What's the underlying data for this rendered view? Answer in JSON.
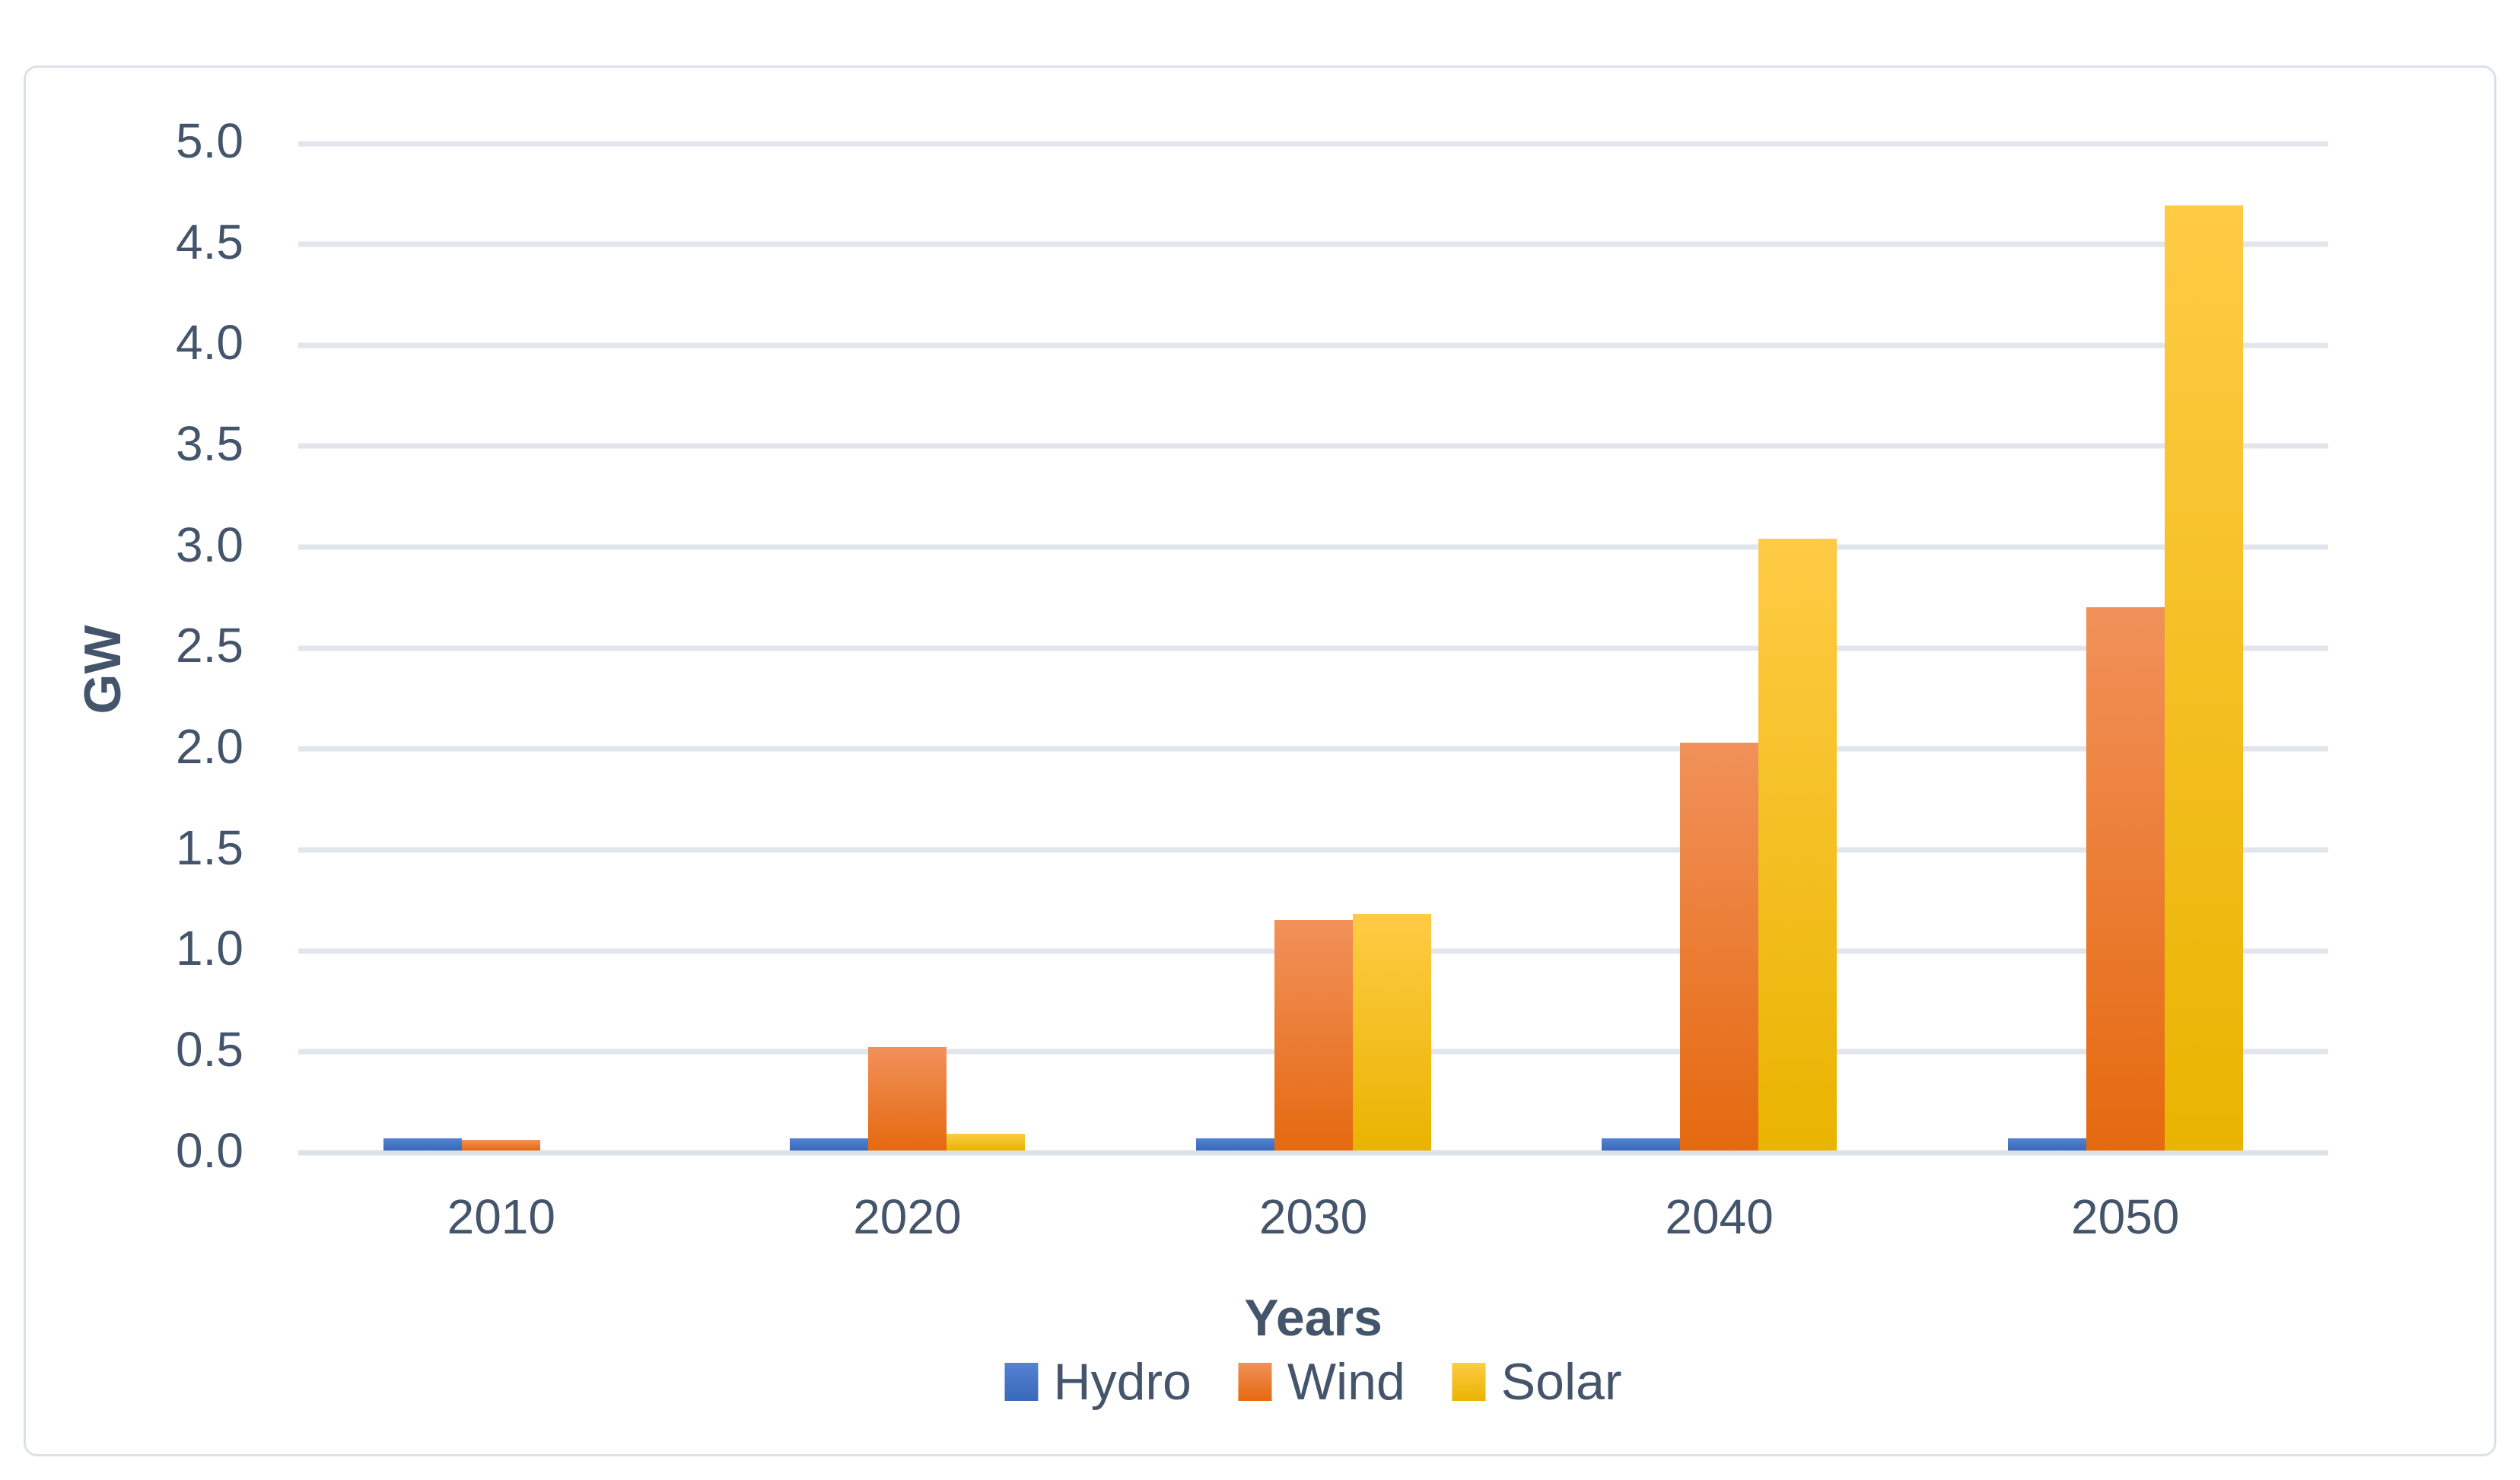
{
  "figure": {
    "background": "#ffffff",
    "border_color": "#dce1e8"
  },
  "chart_data": {
    "type": "bar",
    "title": "",
    "xlabel": "Years",
    "ylabel": "GW",
    "categories": [
      "2010",
      "2020",
      "2030",
      "2040",
      "2050"
    ],
    "series": [
      {
        "name": "Hydro",
        "values": [
          0.06,
          0.06,
          0.06,
          0.06,
          0.06
        ],
        "color": "#4472C4",
        "gradient_top": "#5583d3",
        "gradient_bottom": "#3a68ba"
      },
      {
        "name": "Wind",
        "values": [
          0.05,
          0.51,
          1.14,
          2.02,
          2.69
        ],
        "color": "#ED7D31",
        "gradient_top": "#f1915a",
        "gradient_bottom": "#e5690f"
      },
      {
        "name": "Solar",
        "values": [
          0.0,
          0.08,
          1.17,
          3.03,
          4.68
        ],
        "color": "#FFC000",
        "gradient_top": "#ffcb45",
        "gradient_bottom": "#e9b400"
      }
    ],
    "ylim": [
      0,
      5
    ],
    "ytick_step": 0.5,
    "ytick_labels": [
      "0.0",
      "0.5",
      "1.0",
      "1.5",
      "2.0",
      "2.5",
      "3.0",
      "3.5",
      "4.0",
      "4.5",
      "5.0"
    ],
    "grid": true,
    "grid_color": "#e2e6ec",
    "axis_line_color": "#dde2e9",
    "text_color": "#44546A",
    "legend_position": "bottom",
    "legend_labels": [
      "Hydro",
      "Wind",
      "Solar"
    ]
  }
}
